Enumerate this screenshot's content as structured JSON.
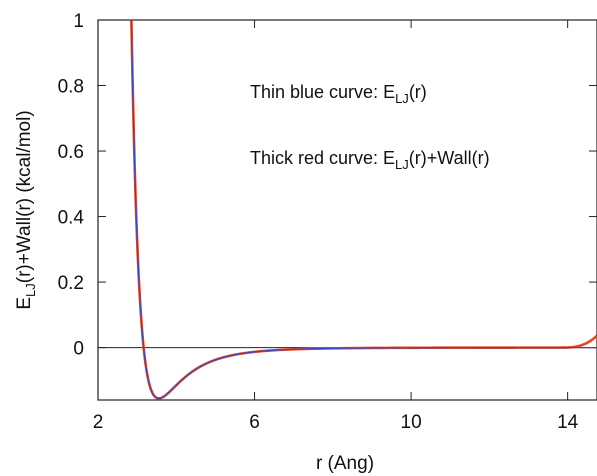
{
  "chart_data": {
    "type": "line",
    "title": "",
    "xlabel": "r (Ang)",
    "ylabel_main": "E",
    "ylabel_sub": "LJ",
    "ylabel_rest": "(r)+Wall(r) (kcal/mol)",
    "xlim": [
      2,
      14.75
    ],
    "ylim": [
      -0.16,
      1.0
    ],
    "x_ticks": [
      2,
      6,
      10,
      14
    ],
    "x_tick_labels": [
      "2",
      "6",
      "10",
      "14"
    ],
    "y_ticks": [
      0,
      0.2,
      0.4,
      0.6,
      0.8,
      1
    ],
    "y_tick_labels": [
      "0",
      "0.2",
      "0.4",
      "0.6",
      "0.8",
      "1"
    ],
    "grid": false,
    "zero_line": true,
    "lj_params": {
      "epsilon": 0.155,
      "sigma": 3.166
    },
    "wall_params": {
      "start": 13.8,
      "scale": 0.043,
      "power": 3
    },
    "series": [
      {
        "name": "",
        "role": "E_LJ(r)",
        "color": "#3a45c8",
        "width": 1.2
      },
      {
        "name": "",
        "role": "E_LJ(r)+Wall(r)",
        "color": "#e8481e",
        "width": 2.6
      }
    ],
    "annotations": [
      {
        "prefix": "Thin blue curve: E",
        "sub": "LJ",
        "suffix": "(r)"
      },
      {
        "prefix": "Thick red curve: E",
        "sub": "LJ",
        "suffix": "(r)+Wall(r)"
      }
    ]
  }
}
